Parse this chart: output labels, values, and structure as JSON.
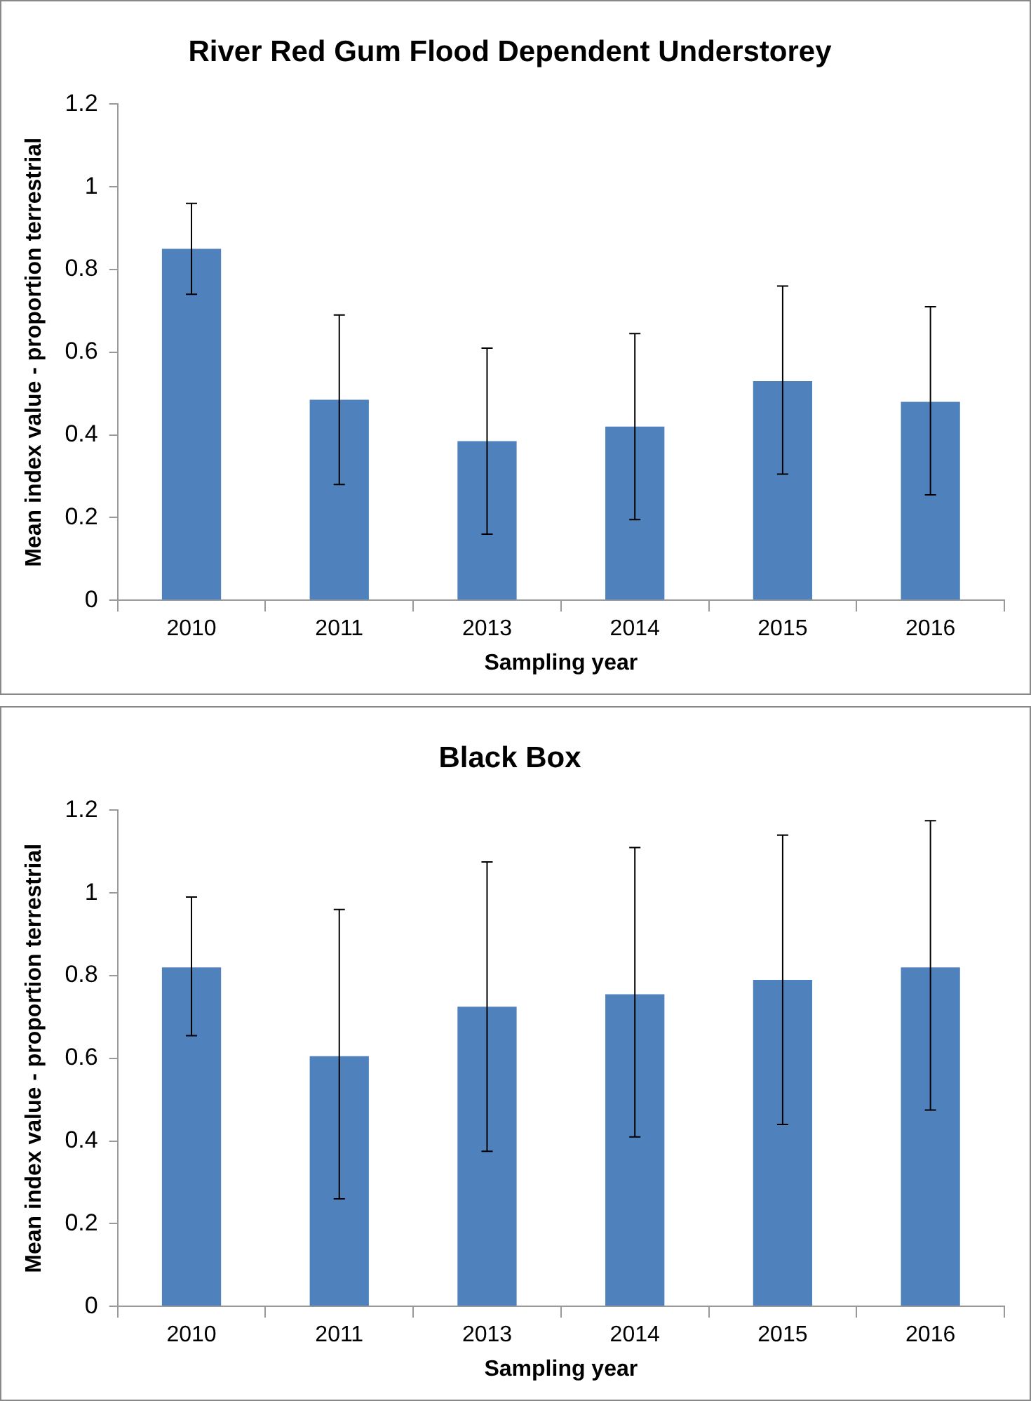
{
  "chart_data": [
    {
      "type": "bar",
      "title": "River Red Gum Flood Dependent Understorey",
      "xlabel": "Sampling year",
      "ylabel": "Mean index value - proportion terrestrial",
      "categories": [
        "2010",
        "2011",
        "2013",
        "2014",
        "2015",
        "2016"
      ],
      "values": [
        0.85,
        0.485,
        0.385,
        0.42,
        0.53,
        0.48
      ],
      "color": "#4f81bd",
      "errors": [
        [
          0.74,
          0.96
        ],
        [
          0.28,
          0.69
        ],
        [
          0.16,
          0.61
        ],
        [
          0.195,
          0.645
        ],
        [
          0.305,
          0.76
        ],
        [
          0.255,
          0.71
        ]
      ],
      "ylim": [
        0,
        1.2
      ],
      "yticks": [
        0,
        0.2,
        0.4,
        0.6,
        0.8,
        1,
        1.2
      ],
      "grid": false,
      "legend": false
    },
    {
      "type": "bar",
      "title": "Black Box",
      "xlabel": "Sampling year",
      "ylabel": "Mean index value - proportion terrestrial",
      "categories": [
        "2010",
        "2011",
        "2013",
        "2014",
        "2015",
        "2016"
      ],
      "values": [
        0.82,
        0.605,
        0.725,
        0.755,
        0.79,
        0.82
      ],
      "color": "#4f81bd",
      "errors": [
        [
          0.655,
          0.99
        ],
        [
          0.26,
          0.96
        ],
        [
          0.375,
          1.075
        ],
        [
          0.41,
          1.11
        ],
        [
          0.44,
          1.14
        ],
        [
          0.475,
          1.175
        ]
      ],
      "ylim": [
        0,
        1.2
      ],
      "yticks": [
        0,
        0.2,
        0.4,
        0.6,
        0.8,
        1,
        1.2
      ],
      "grid": false,
      "legend": false
    }
  ]
}
